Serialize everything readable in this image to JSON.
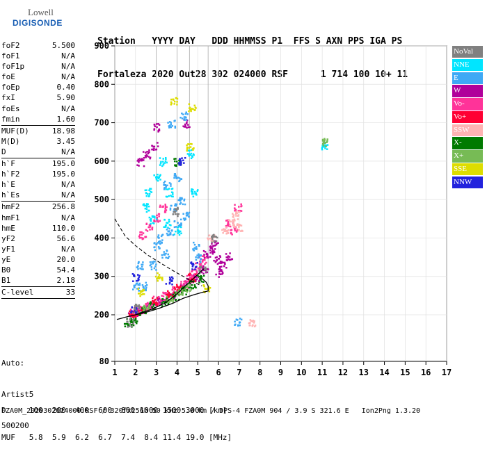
{
  "logo": {
    "top": "Lowell",
    "bottom": "DIGISONDE"
  },
  "header": {
    "line1": "Station   YYYY DAY   DDD HHMMSS P1  FFS S AXN PPS IGA PS",
    "line2": "Fortaleza 2020 Out28 302 024000 RSF      1 714 100 10+ 11"
  },
  "params": [
    {
      "k": "foF2",
      "v": "5.500"
    },
    {
      "k": "foF1",
      "v": "N/A"
    },
    {
      "k": "foF1p",
      "v": "N/A"
    },
    {
      "k": "foE",
      "v": "N/A"
    },
    {
      "k": "foEp",
      "v": "0.40"
    },
    {
      "k": "fxI",
      "v": "5.90"
    },
    {
      "k": "foEs",
      "v": "N/A"
    },
    {
      "k": "fmin",
      "v": "1.60"
    },
    {
      "k": "",
      "v": "",
      "div": true
    },
    {
      "k": "MUF(D)",
      "v": "18.98"
    },
    {
      "k": "M(D)",
      "v": "3.45"
    },
    {
      "k": "D",
      "v": "N/A"
    },
    {
      "k": "",
      "v": "",
      "div": true
    },
    {
      "k": "h`F",
      "v": "195.0"
    },
    {
      "k": "h`F2",
      "v": "195.0"
    },
    {
      "k": "h`E",
      "v": "N/A"
    },
    {
      "k": "h`Es",
      "v": "N/A"
    },
    {
      "k": "",
      "v": "",
      "div": true
    },
    {
      "k": "hmF2",
      "v": "256.8"
    },
    {
      "k": "hmF1",
      "v": "N/A"
    },
    {
      "k": "hmE",
      "v": "110.0"
    },
    {
      "k": "yF2",
      "v": "56.6"
    },
    {
      "k": "yF1",
      "v": "N/A"
    },
    {
      "k": "yE",
      "v": "20.0"
    },
    {
      "k": "B0",
      "v": "54.4"
    },
    {
      "k": "B1",
      "v": "2.18"
    },
    {
      "k": "",
      "v": "",
      "div": true
    },
    {
      "k": "C-level",
      "v": "33"
    },
    {
      "k": "",
      "v": "",
      "div": true
    }
  ],
  "auto": {
    "l1": "Auto:",
    "l2": "Artist5",
    "l3": "500200"
  },
  "bottom": {
    "l1": "D     100  200  400  600  800 1000 1500 3000 [km]",
    "l2": "MUF   5.8  5.9  6.2  6.7  7.4  8.4 11.4 19.0 [MHz]"
  },
  "footer": "FZA0M_2020302024000.RSF / 320fx256h 50 kHz 5.0 km / DPS-4 FZA0M 904 / 3.9 S 321.6 E   Ion2Png 1.3.20",
  "legend": [
    {
      "label": "NoVal",
      "color": "#808080"
    },
    {
      "label": "NNE",
      "color": "#00e5ff"
    },
    {
      "label": "E",
      "color": "#3fa9f5"
    },
    {
      "label": "W",
      "color": "#b0009a"
    },
    {
      "label": "Vo-",
      "color": "#ff3399"
    },
    {
      "label": "Vo+",
      "color": "#ff0033"
    },
    {
      "label": "SSW",
      "color": "#ffb3b3"
    },
    {
      "label": "X-",
      "color": "#007a00"
    },
    {
      "label": "X+",
      "color": "#77bb55"
    },
    {
      "label": "SSE",
      "color": "#dddd00"
    },
    {
      "label": "NNW",
      "color": "#2222dd"
    }
  ],
  "chart_data": {
    "type": "scatter",
    "title": "",
    "xlabel": "",
    "ylabel": "",
    "xlim": [
      1,
      17
    ],
    "ylim": [
      80,
      900
    ],
    "xticks": [
      1,
      2,
      3,
      4,
      5,
      6,
      7,
      8,
      9,
      10,
      11,
      12,
      13,
      14,
      15,
      16,
      17
    ],
    "yticks": [
      80,
      200,
      300,
      400,
      500,
      600,
      700,
      800,
      900
    ],
    "grid": true,
    "series": [
      {
        "name": "W",
        "color": "#b0009a",
        "points": [
          [
            5.4,
            360
          ],
          [
            5.7,
            370
          ],
          [
            5.9,
            345
          ],
          [
            6.2,
            330
          ],
          [
            6.5,
            355
          ],
          [
            5.8,
            385
          ],
          [
            6.0,
            310
          ],
          [
            5.3,
            320
          ],
          [
            4.9,
            300
          ],
          [
            4.5,
            285
          ],
          [
            4.2,
            270
          ],
          [
            3.8,
            255
          ],
          [
            3.5,
            245
          ],
          [
            3.1,
            235
          ],
          [
            2.7,
            225
          ],
          [
            2.3,
            215
          ],
          [
            2.0,
            210
          ],
          [
            1.8,
            205
          ],
          [
            2.5,
            620
          ],
          [
            2.9,
            640
          ],
          [
            2.2,
            600
          ],
          [
            3.0,
            690
          ],
          [
            4.4,
            700
          ]
        ]
      },
      {
        "name": "Vo-",
        "color": "#ff3399",
        "points": [
          [
            4.8,
            310
          ],
          [
            5.0,
            330
          ],
          [
            5.2,
            345
          ],
          [
            4.6,
            295
          ],
          [
            4.3,
            280
          ],
          [
            3.9,
            265
          ],
          [
            3.4,
            250
          ],
          [
            3.0,
            240
          ],
          [
            2.6,
            225
          ],
          [
            2.2,
            215
          ],
          [
            1.9,
            208
          ],
          [
            2.3,
            410
          ],
          [
            2.6,
            430
          ],
          [
            3.0,
            455
          ],
          [
            3.3,
            480
          ],
          [
            6.7,
            420
          ],
          [
            6.5,
            440
          ],
          [
            6.9,
            480
          ]
        ]
      },
      {
        "name": "Vo+",
        "color": "#ff0033",
        "points": [
          [
            4.7,
            300
          ],
          [
            4.0,
            270
          ],
          [
            3.6,
            255
          ],
          [
            2.9,
            235
          ],
          [
            2.1,
            210
          ],
          [
            1.8,
            203
          ]
        ]
      },
      {
        "name": "E",
        "color": "#3fa9f5",
        "points": [
          [
            3.2,
            400
          ],
          [
            3.6,
            420
          ],
          [
            4.0,
            440
          ],
          [
            4.4,
            460
          ],
          [
            3.8,
            480
          ],
          [
            4.2,
            500
          ],
          [
            3.4,
            360
          ],
          [
            3.0,
            380
          ],
          [
            2.8,
            330
          ],
          [
            2.2,
            330
          ],
          [
            2.0,
            275
          ],
          [
            2.4,
            275
          ],
          [
            4.9,
            380
          ],
          [
            5.0,
            350
          ],
          [
            3.5,
            540
          ],
          [
            4.0,
            560
          ],
          [
            3.7,
            700
          ],
          [
            4.3,
            720
          ],
          [
            6.9,
            182
          ]
        ]
      },
      {
        "name": "NNE",
        "color": "#00e5ff",
        "points": [
          [
            3.0,
            560
          ],
          [
            3.3,
            600
          ],
          [
            3.6,
            520
          ],
          [
            2.6,
            520
          ],
          [
            2.8,
            450
          ],
          [
            2.5,
            480
          ],
          [
            4.6,
            620
          ],
          [
            4.8,
            520
          ],
          [
            11.1,
            640
          ],
          [
            4.0,
            420
          ],
          [
            3.5,
            440
          ]
        ]
      },
      {
        "name": "X-",
        "color": "#007a00",
        "points": [
          [
            3.9,
            250
          ],
          [
            4.3,
            265
          ],
          [
            4.7,
            280
          ],
          [
            5.1,
            295
          ],
          [
            3.4,
            235
          ],
          [
            2.8,
            225
          ],
          [
            2.3,
            212
          ],
          [
            1.6,
            182
          ],
          [
            1.9,
            182
          ],
          [
            4.0,
            600
          ]
        ]
      },
      {
        "name": "X+",
        "color": "#77bb55",
        "points": [
          [
            4.1,
            258
          ],
          [
            4.5,
            272
          ],
          [
            3.6,
            245
          ],
          [
            2.5,
            220
          ],
          [
            11.1,
            650
          ]
        ]
      },
      {
        "name": "SSW",
        "color": "#ffb3b3",
        "points": [
          [
            6.3,
            420
          ],
          [
            6.6,
            440
          ],
          [
            6.8,
            460
          ],
          [
            7.0,
            430
          ],
          [
            5.6,
            400
          ],
          [
            7.6,
            182
          ]
        ]
      },
      {
        "name": "SSE",
        "color": "#dddd00",
        "points": [
          [
            3.1,
            300
          ],
          [
            5.4,
            270
          ],
          [
            4.7,
            740
          ],
          [
            3.8,
            760
          ],
          [
            4.6,
            640
          ],
          [
            2.2,
            260
          ]
        ]
      },
      {
        "name": "NNW",
        "color": "#2222dd",
        "points": [
          [
            4.8,
            330
          ],
          [
            2.0,
            300
          ],
          [
            3.6,
            290
          ],
          [
            1.9,
            215
          ],
          [
            4.2,
            600
          ]
        ]
      },
      {
        "name": "NoVal",
        "color": "#808080",
        "points": [
          [
            5.8,
            400
          ],
          [
            5.2,
            320
          ],
          [
            3.9,
            470
          ],
          [
            1.7,
            182
          ],
          [
            2.0,
            218
          ]
        ]
      }
    ],
    "vertical_lines_x": [
      3.0,
      4.0,
      4.6,
      5.5
    ],
    "trace_solid": [
      [
        1.1,
        188
      ],
      [
        1.6,
        195
      ],
      [
        2.0,
        200
      ],
      [
        2.6,
        208
      ],
      [
        3.2,
        218
      ],
      [
        3.8,
        230
      ],
      [
        4.3,
        243
      ],
      [
        4.8,
        252
      ],
      [
        5.2,
        258
      ],
      [
        5.5,
        262
      ],
      [
        5.5,
        275
      ],
      [
        5.4,
        285
      ],
      [
        5.2,
        295
      ]
    ],
    "trace_solid2": [
      [
        2.0,
        200
      ],
      [
        2.8,
        215
      ],
      [
        3.4,
        230
      ],
      [
        3.9,
        250
      ],
      [
        4.3,
        270
      ],
      [
        4.7,
        290
      ],
      [
        5.0,
        305
      ],
      [
        5.3,
        320
      ]
    ],
    "trace_dashed": [
      [
        1.0,
        450
      ],
      [
        1.5,
        405
      ],
      [
        2.0,
        380
      ],
      [
        2.6,
        355
      ],
      [
        3.2,
        335
      ],
      [
        3.8,
        315
      ],
      [
        4.3,
        300
      ],
      [
        4.8,
        285
      ],
      [
        5.2,
        275
      ]
    ]
  }
}
